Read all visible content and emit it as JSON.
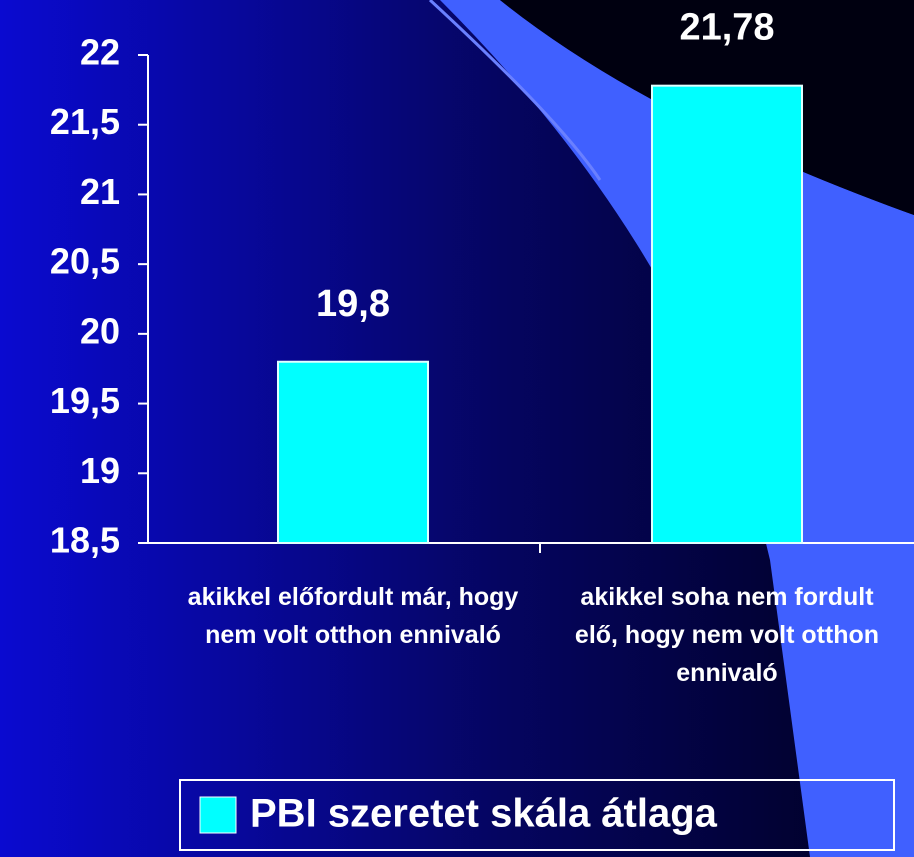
{
  "chart_data": {
    "type": "bar",
    "categories": [
      "akikkel előfordult már, hogy nem volt otthon ennivaló",
      "akikkel soha nem fordult elő, hogy nem volt otthon ennivaló"
    ],
    "series": [
      {
        "name": "PBI szeretet skála átlaga",
        "color": "#00ffff",
        "values": [
          19.8,
          21.78
        ],
        "value_labels": [
          "19,8",
          "21,78"
        ]
      }
    ],
    "ylim": [
      18.5,
      22
    ],
    "yticks": [
      {
        "value": 18.5,
        "label": "18,5"
      },
      19,
      {
        "value": 19.5,
        "label": "19,5"
      },
      20,
      {
        "value": 20.5,
        "label": "20,5"
      },
      21,
      {
        "value": 21.5,
        "label": "21,5"
      },
      22
    ],
    "grid": false,
    "legend": "bottom"
  }
}
